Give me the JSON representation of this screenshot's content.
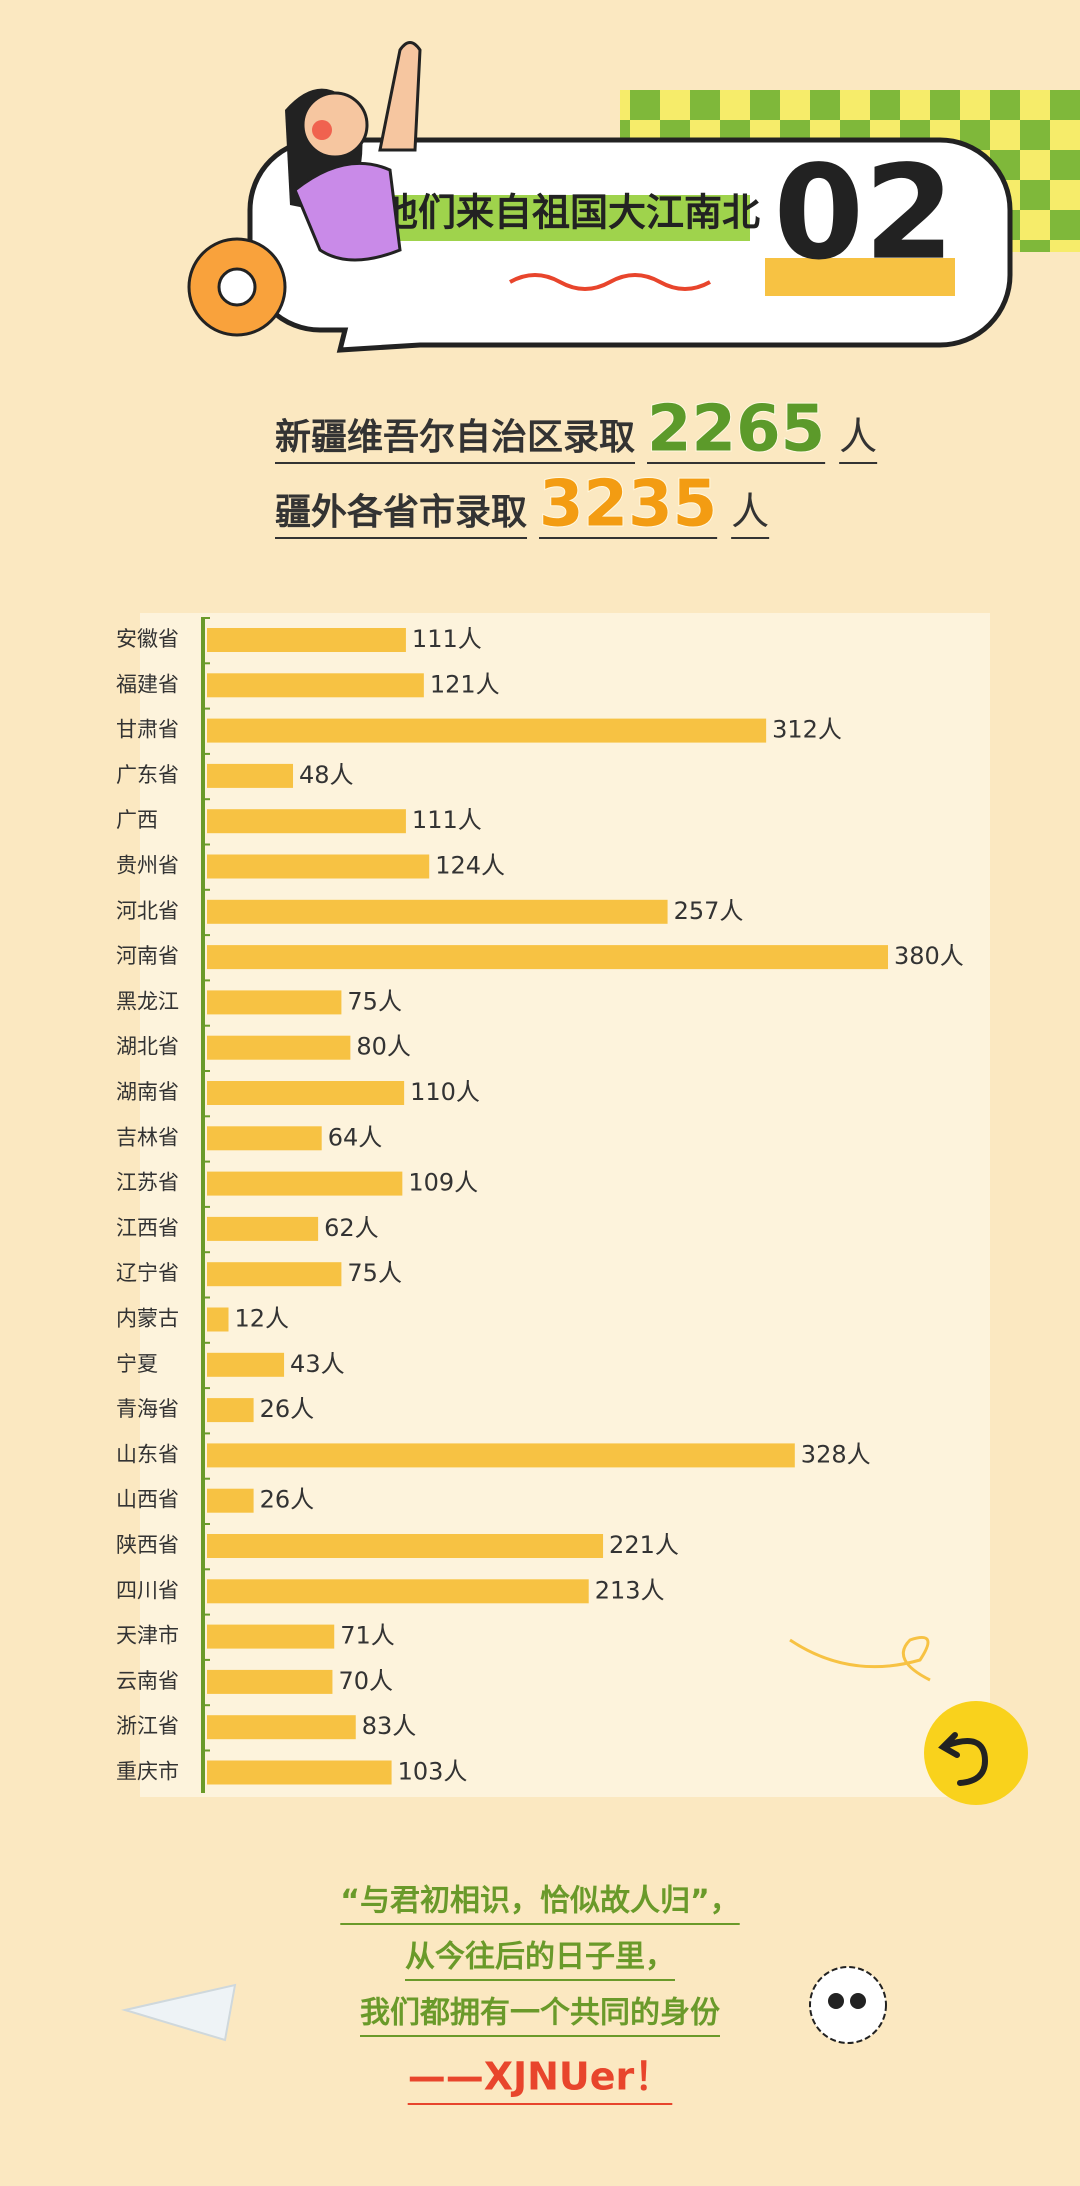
{
  "header": {
    "title": "他们来自祖国大江南北",
    "number": "02"
  },
  "stats": [
    {
      "label": "新疆维吾尔自治区录取",
      "value": 2265,
      "unit": "人"
    },
    {
      "label": "疆外各省市录取",
      "value": 3235,
      "unit": "人"
    }
  ],
  "chart_data": {
    "type": "bar",
    "orientation": "horizontal",
    "color": "#f7c243",
    "categories": [
      "安徽省",
      "福建省",
      "甘肃省",
      "广东省",
      "广西",
      "贵州省",
      "河北省",
      "河南省",
      "黑龙江",
      "湖北省",
      "湖南省",
      "吉林省",
      "江苏省",
      "江西省",
      "辽宁省",
      "内蒙古",
      "宁夏",
      "青海省",
      "山东省",
      "山西省",
      "陕西省",
      "四川省",
      "天津市",
      "云南省",
      "浙江省",
      "重庆市"
    ],
    "values": [
      111,
      121,
      312,
      48,
      111,
      124,
      257,
      380,
      75,
      80,
      110,
      64,
      109,
      62,
      75,
      12,
      43,
      26,
      328,
      26,
      221,
      213,
      71,
      70,
      83,
      103
    ],
    "value_labels": [
      "111人",
      "121人",
      "312人",
      "48人",
      "111人",
      "124人",
      "257人",
      "380人",
      "75人",
      "80人",
      "110人",
      "64人",
      "109人",
      "62人",
      "75人",
      "12人",
      "43人",
      "26人",
      "328人",
      "26人",
      "221人",
      "213人",
      "71人",
      "70人",
      "83人",
      "103人"
    ]
  },
  "footer": {
    "lines": [
      "“与君初相识，恰似故人归”，",
      "从今往后的日子里，",
      "我们都拥有一个共同的身份"
    ],
    "signature": "——XJNUer！"
  }
}
